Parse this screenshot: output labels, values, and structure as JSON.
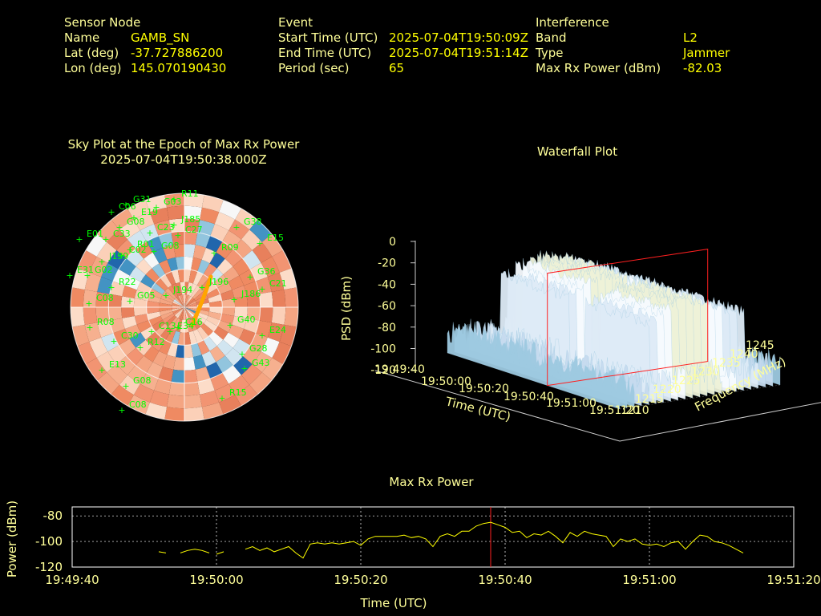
{
  "header": {
    "sensor": {
      "heading": "Sensor Node",
      "rows": [
        {
          "label": "Name",
          "value": "GAMB_SN"
        },
        {
          "label": "Lat (deg)",
          "value": "-37.727886200"
        },
        {
          "label": "Lon (deg)",
          "value": "145.070190430"
        }
      ]
    },
    "event": {
      "heading": "Event",
      "rows": [
        {
          "label": "Start Time (UTC)",
          "value": "2025-07-04T19:50:09Z"
        },
        {
          "label": "End Time (UTC)",
          "value": "2025-07-04T19:51:14Z"
        },
        {
          "label": "Period (sec)",
          "value": "65"
        }
      ]
    },
    "interference": {
      "heading": "Interference",
      "rows": [
        {
          "label": "Band",
          "value": "L2"
        },
        {
          "label": "Type",
          "value": "Jammer"
        },
        {
          "label": "Max Rx Power (dBm)",
          "value": "-82.03"
        }
      ]
    }
  },
  "chart_data": [
    {
      "type": "sky",
      "title": "Sky Plot at the Epoch of Max Rx Power",
      "subtitle": "2025-07-04T19:50:38.000Z",
      "satellites": [
        "R11",
        "G31",
        "C06",
        "E19",
        "G03",
        "G08",
        "J185",
        "G38",
        "E15",
        "E01",
        "C33",
        "C23",
        "C27",
        "R01",
        "C02",
        "J199",
        "G08",
        "R09",
        "E31",
        "G02",
        "J194",
        "R22",
        "G36",
        "C21",
        "J196",
        "C08",
        "G05",
        "J186",
        "R08",
        "G40",
        "C13",
        "E24",
        "C30",
        "R12",
        "C16",
        "E34",
        "G28",
        "G43",
        "E13",
        "G08",
        "C08",
        "R15"
      ],
      "colors": {
        "sat_label": "#00ff00",
        "track": "#ffa500"
      }
    },
    {
      "type": "surface",
      "title": "Waterfall Plot",
      "zlabel": "PSD (dBm)",
      "xlabel": "Time (UTC)",
      "ylabel": "Frequency (MHz)",
      "z_ticks": [
        "0",
        "-20",
        "-40",
        "-60",
        "-80",
        "-100",
        "-120"
      ],
      "x_ticks": [
        "19:49:40",
        "19:50:00",
        "19:50:20",
        "19:50:40",
        "19:51:00",
        "19:51:20"
      ],
      "y_ticks": [
        "1210",
        "1215",
        "1220",
        "1225",
        "1230",
        "1235",
        "1240",
        "1245"
      ],
      "zlim": [
        -120,
        0
      ],
      "xlim": [
        "19:49:40",
        "19:51:20"
      ],
      "ylim": [
        1210,
        1245
      ],
      "marker_time": "19:50:38"
    },
    {
      "type": "line",
      "title": "Max Rx Power",
      "xlabel": "Time (UTC)",
      "ylabel": "Power (dBm)",
      "x_ticks": [
        "19:49:40",
        "19:50:00",
        "19:50:20",
        "19:50:40",
        "19:51:00",
        "19:51:20"
      ],
      "y_ticks": [
        "-80",
        "-100",
        "-120"
      ],
      "ylim": [
        -120,
        -73
      ],
      "x_range_sec": [
        0,
        100
      ],
      "marker_sec": 58,
      "grid": true,
      "series": [
        {
          "color": "#ffff00",
          "segments": [
            [
              [
                12,
                -108
              ],
              [
                13,
                -109
              ]
            ],
            [
              [
                15,
                -109
              ],
              [
                16,
                -107
              ],
              [
                17,
                -106
              ],
              [
                18,
                -107
              ],
              [
                19,
                -109
              ]
            ],
            [
              [
                20,
                -110
              ],
              [
                21,
                -108
              ]
            ],
            [
              [
                24,
                -106
              ],
              [
                25,
                -104
              ],
              [
                26,
                -107
              ],
              [
                27,
                -105
              ],
              [
                28,
                -108
              ],
              [
                29,
                -106
              ],
              [
                30,
                -104
              ],
              [
                31,
                -109
              ],
              [
                32,
                -113
              ],
              [
                33,
                -102
              ],
              [
                34,
                -101
              ],
              [
                35,
                -102
              ],
              [
                36,
                -101
              ],
              [
                37,
                -102
              ],
              [
                38,
                -101
              ],
              [
                39,
                -100
              ],
              [
                40,
                -103
              ],
              [
                41,
                -98
              ],
              [
                42,
                -96
              ],
              [
                43,
                -96
              ],
              [
                44,
                -96
              ],
              [
                45,
                -96
              ],
              [
                46,
                -95
              ],
              [
                47,
                -97
              ],
              [
                48,
                -96
              ],
              [
                49,
                -98
              ],
              [
                50,
                -104
              ],
              [
                51,
                -96
              ],
              [
                52,
                -94
              ],
              [
                53,
                -96
              ],
              [
                54,
                -92
              ],
              [
                55,
                -92
              ],
              [
                56,
                -88
              ],
              [
                57,
                -86
              ],
              [
                58,
                -85
              ],
              [
                59,
                -87
              ],
              [
                60,
                -89
              ],
              [
                61,
                -93
              ],
              [
                62,
                -92
              ],
              [
                63,
                -97
              ],
              [
                64,
                -94
              ],
              [
                65,
                -95
              ],
              [
                66,
                -92
              ],
              [
                67,
                -96
              ],
              [
                68,
                -101
              ],
              [
                69,
                -93
              ],
              [
                70,
                -96
              ],
              [
                71,
                -92
              ],
              [
                72,
                -94
              ],
              [
                73,
                -95
              ],
              [
                74,
                -96
              ],
              [
                75,
                -104
              ],
              [
                76,
                -98
              ],
              [
                77,
                -100
              ],
              [
                78,
                -98
              ],
              [
                79,
                -102
              ],
              [
                80,
                -103
              ],
              [
                81,
                -102
              ],
              [
                82,
                -104
              ],
              [
                83,
                -101
              ],
              [
                84,
                -100
              ],
              [
                85,
                -106
              ],
              [
                86,
                -100
              ],
              [
                87,
                -95
              ],
              [
                88,
                -96
              ],
              [
                89,
                -100
              ],
              [
                90,
                -101
              ],
              [
                91,
                -103
              ],
              [
                92,
                -106
              ],
              [
                93,
                -109
              ]
            ]
          ]
        }
      ]
    }
  ]
}
